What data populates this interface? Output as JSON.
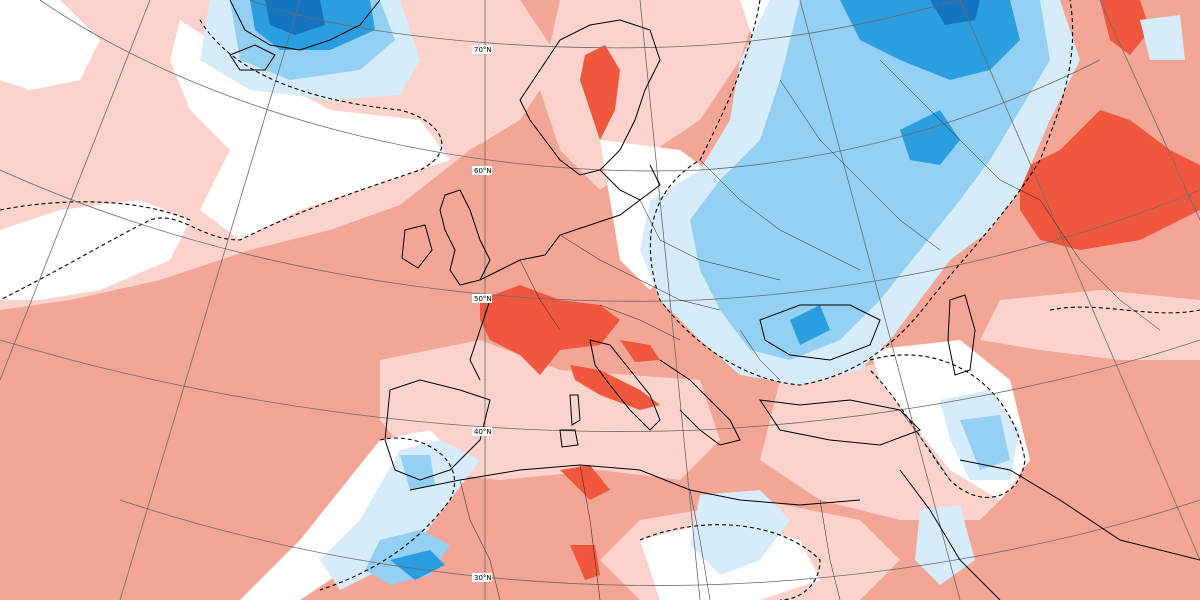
{
  "map": {
    "latitude_labels": [
      "70°N",
      "60°N",
      "50°N",
      "40°N",
      "30°N"
    ],
    "colors": {
      "land_water_background": "#ffffff",
      "warm_light": "#fbd3cc",
      "warm_medium": "#f3a596",
      "warm_strong": "#f1573d",
      "cold_light": "#d6ecfb",
      "cold_medium": "#93d0f4",
      "cold_strong": "#2b9ee0",
      "cold_deep": "#1474c2",
      "grid_lines": "#6b6b6b",
      "coastlines": "#000000"
    }
  }
}
